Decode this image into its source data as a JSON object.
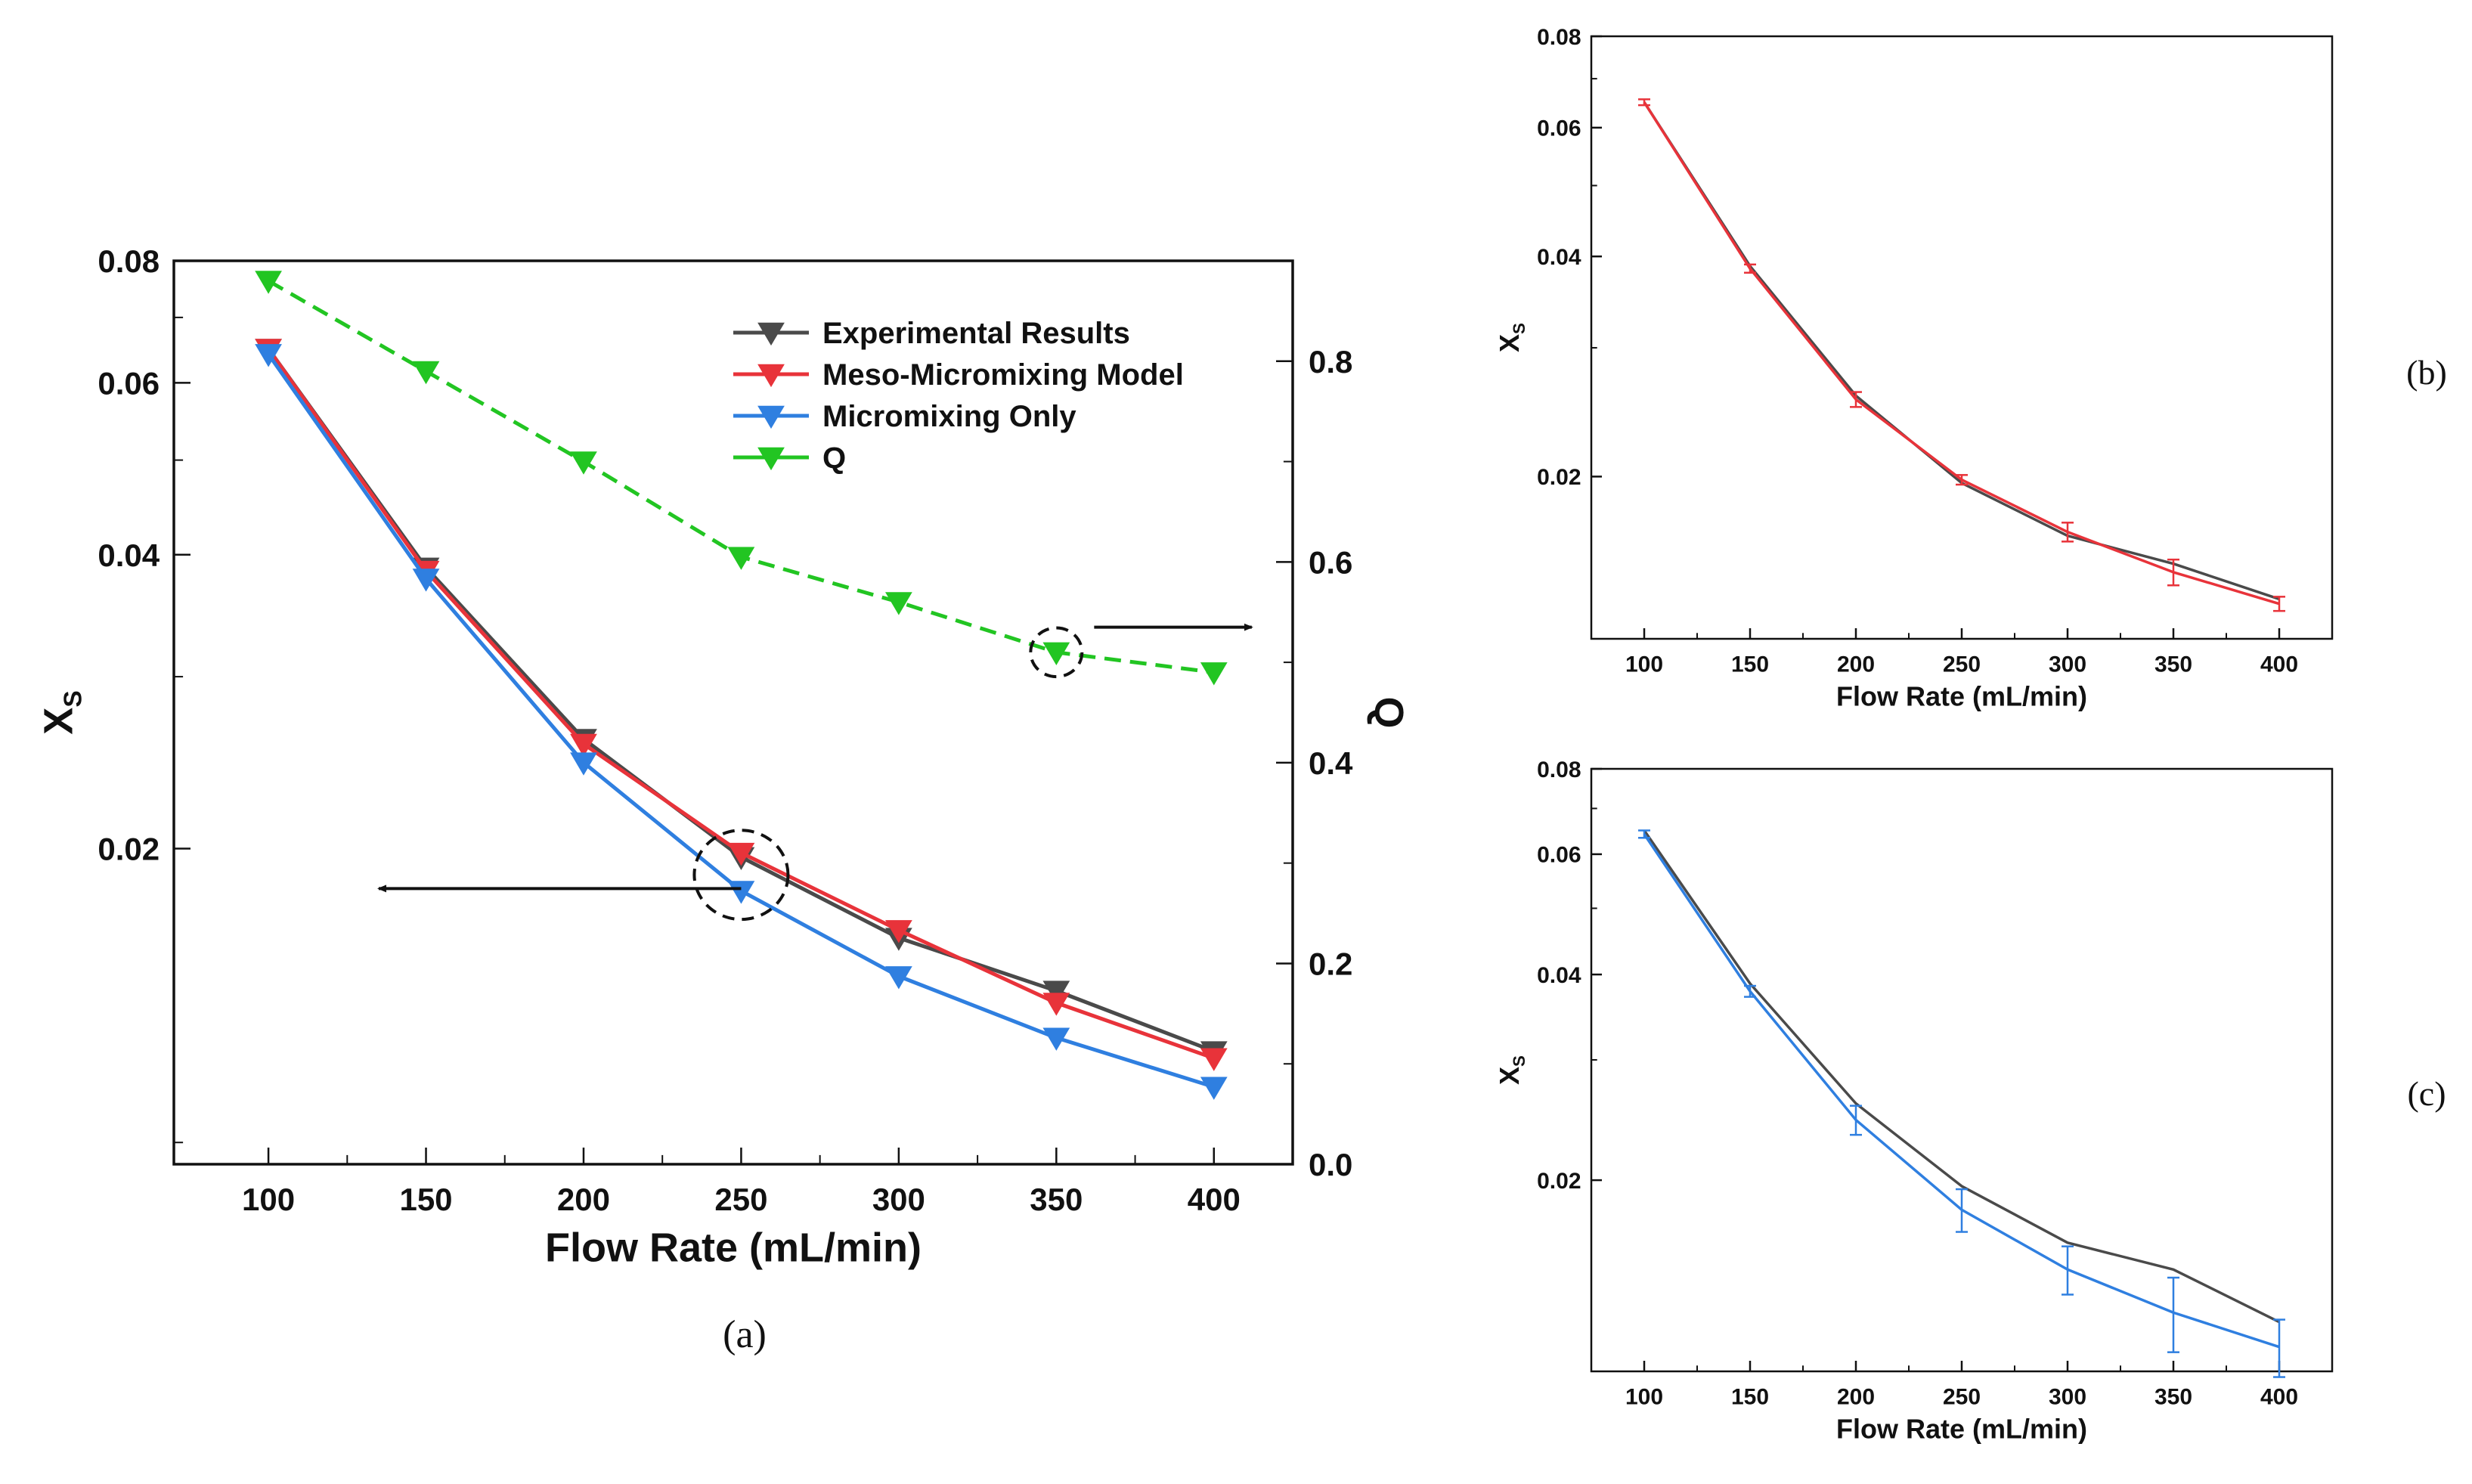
{
  "colors": {
    "experimental": "#4a4a4a",
    "meso": "#e8333a",
    "micro": "#2f7fe0",
    "q": "#22c522",
    "axis": "#111111"
  },
  "chart_data": [
    {
      "id": "a",
      "panel_label": "(a)",
      "type": "line",
      "xlabel": "Flow Rate (mL/min)",
      "ylabel": "X",
      "ylabel_sub": "S",
      "y2label": "Q",
      "x_ticks": [
        100,
        150,
        200,
        250,
        300,
        350,
        400
      ],
      "xlim": [
        70,
        425
      ],
      "ylim": [
        0.0095,
        0.08
      ],
      "yscale": "log",
      "y_ticks": [
        0.02,
        0.04,
        0.06,
        0.08
      ],
      "y2lim": [
        0.0,
        0.9
      ],
      "y2_ticks": [
        0.0,
        0.2,
        0.4,
        0.6,
        0.8
      ],
      "legend_position": "top-right",
      "series": [
        {
          "name": "Experimental Results",
          "color_key": "experimental",
          "axis": "left",
          "dashed": false,
          "x": [
            100,
            150,
            200,
            250,
            300,
            350,
            400
          ],
          "values": [
            0.065,
            0.0388,
            0.0259,
            0.0196,
            0.0162,
            0.0143,
            0.0124
          ]
        },
        {
          "name": "Meso-Micromixing Model",
          "color_key": "meso",
          "axis": "left",
          "dashed": false,
          "x": [
            100,
            150,
            200,
            250,
            300,
            350,
            400
          ],
          "values": [
            0.065,
            0.0385,
            0.0256,
            0.0198,
            0.0165,
            0.0139,
            0.0122
          ]
        },
        {
          "name": "Micromixing Only",
          "color_key": "micro",
          "axis": "left",
          "dashed": false,
          "x": [
            100,
            150,
            200,
            250,
            300,
            350,
            400
          ],
          "values": [
            0.0642,
            0.0378,
            0.0245,
            0.0181,
            0.0148,
            0.0128,
            0.0114
          ]
        },
        {
          "name": "Q",
          "color_key": "q",
          "axis": "right",
          "dashed": true,
          "x": [
            100,
            150,
            200,
            250,
            300,
            350,
            400
          ],
          "values": [
            0.88,
            0.79,
            0.7,
            0.605,
            0.56,
            0.51,
            0.49
          ]
        }
      ],
      "annotations": [
        {
          "type": "arrow-left",
          "from_x": 250,
          "from_y": 0.0182,
          "to_x": 135,
          "to_y": 0.0182
        },
        {
          "type": "circle",
          "x": 250,
          "y": 0.0188
        },
        {
          "type": "arrow-right",
          "from_x": 362,
          "from_y2": 0.535,
          "to_x": 412,
          "to_y2": 0.535
        },
        {
          "type": "circle",
          "x": 350,
          "y2": 0.51
        }
      ]
    },
    {
      "id": "b",
      "panel_label": "(b)",
      "type": "line",
      "xlabel": "Flow Rate (mL/min)",
      "ylabel": "X",
      "ylabel_sub": "S",
      "x_ticks": [
        100,
        150,
        200,
        250,
        300,
        350,
        400
      ],
      "xlim": [
        75,
        425
      ],
      "ylim": [
        0.012,
        0.08
      ],
      "yscale": "log",
      "y_ticks": [
        0.02,
        0.04,
        0.06,
        0.08
      ],
      "series": [
        {
          "name": "Experimental Results",
          "color_key": "experimental",
          "x": [
            100,
            150,
            200,
            250,
            300,
            350,
            400
          ],
          "values": [
            0.065,
            0.0388,
            0.0258,
            0.0196,
            0.0166,
            0.0152,
            0.0136
          ]
        },
        {
          "name": "Meso-Micromixing Model",
          "color_key": "meso",
          "x": [
            100,
            150,
            200,
            250,
            300,
            350,
            400
          ],
          "values": [
            0.065,
            0.0385,
            0.0255,
            0.0198,
            0.0168,
            0.0148,
            0.0134
          ],
          "errors": [
            0.0006,
            0.0005,
            0.0006,
            0.0003,
            0.0005,
            0.0006,
            0.0003
          ]
        }
      ]
    },
    {
      "id": "c",
      "panel_label": "(c)",
      "type": "line",
      "xlabel": "Flow Rate (mL/min)",
      "ylabel": "X",
      "ylabel_sub": "S",
      "x_ticks": [
        100,
        150,
        200,
        250,
        300,
        350,
        400
      ],
      "xlim": [
        75,
        425
      ],
      "ylim": [
        0.0105,
        0.08
      ],
      "yscale": "log",
      "y_ticks": [
        0.02,
        0.04,
        0.06,
        0.08
      ],
      "series": [
        {
          "name": "Experimental Results",
          "color_key": "experimental",
          "x": [
            100,
            150,
            200,
            250,
            300,
            350,
            400
          ],
          "values": [
            0.065,
            0.0388,
            0.0259,
            0.0196,
            0.0162,
            0.0148,
            0.0124
          ]
        },
        {
          "name": "Micromixing Only",
          "color_key": "micro",
          "x": [
            100,
            150,
            200,
            250,
            300,
            350,
            400
          ],
          "values": [
            0.0642,
            0.0378,
            0.0245,
            0.0181,
            0.0148,
            0.0128,
            0.0114
          ],
          "errors": [
            0.0008,
            0.0007,
            0.0012,
            0.0013,
            0.0012,
            0.0016,
            0.0011
          ]
        }
      ]
    }
  ]
}
